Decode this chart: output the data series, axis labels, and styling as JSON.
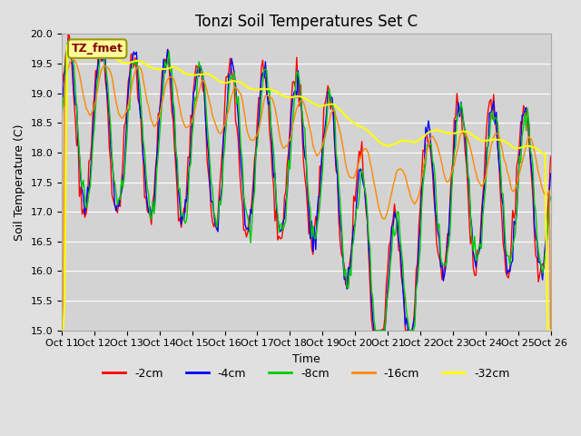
{
  "title": "Tonzi Soil Temperatures Set C",
  "xlabel": "Time",
  "ylabel": "Soil Temperature (C)",
  "ylim": [
    15.0,
    20.0
  ],
  "yticks": [
    15.0,
    15.5,
    16.0,
    16.5,
    17.0,
    17.5,
    18.0,
    18.5,
    19.0,
    19.5,
    20.0
  ],
  "xtick_labels": [
    "Oct 11",
    "Oct 12",
    "Oct 13",
    "Oct 14",
    "Oct 15",
    "Oct 16",
    "Oct 17",
    "Oct 18",
    "Oct 19",
    "Oct 20",
    "Oct 21",
    "Oct 22",
    "Oct 23",
    "Oct 24",
    "Oct 25",
    "Oct 26"
  ],
  "colors": {
    "-2cm": "#ff0000",
    "-4cm": "#0000ff",
    "-8cm": "#00cc00",
    "-16cm": "#ff8800",
    "-32cm": "#ffff00"
  },
  "legend_label_box_color": "#ffff99",
  "legend_label_text": "TZ_fmet",
  "legend_label_text_color": "#880000",
  "fig_facecolor": "#e0e0e0",
  "plot_bg_color": "#d3d3d3",
  "title_fontsize": 12,
  "axis_fontsize": 9,
  "tick_fontsize": 8,
  "linewidth": 1.0
}
